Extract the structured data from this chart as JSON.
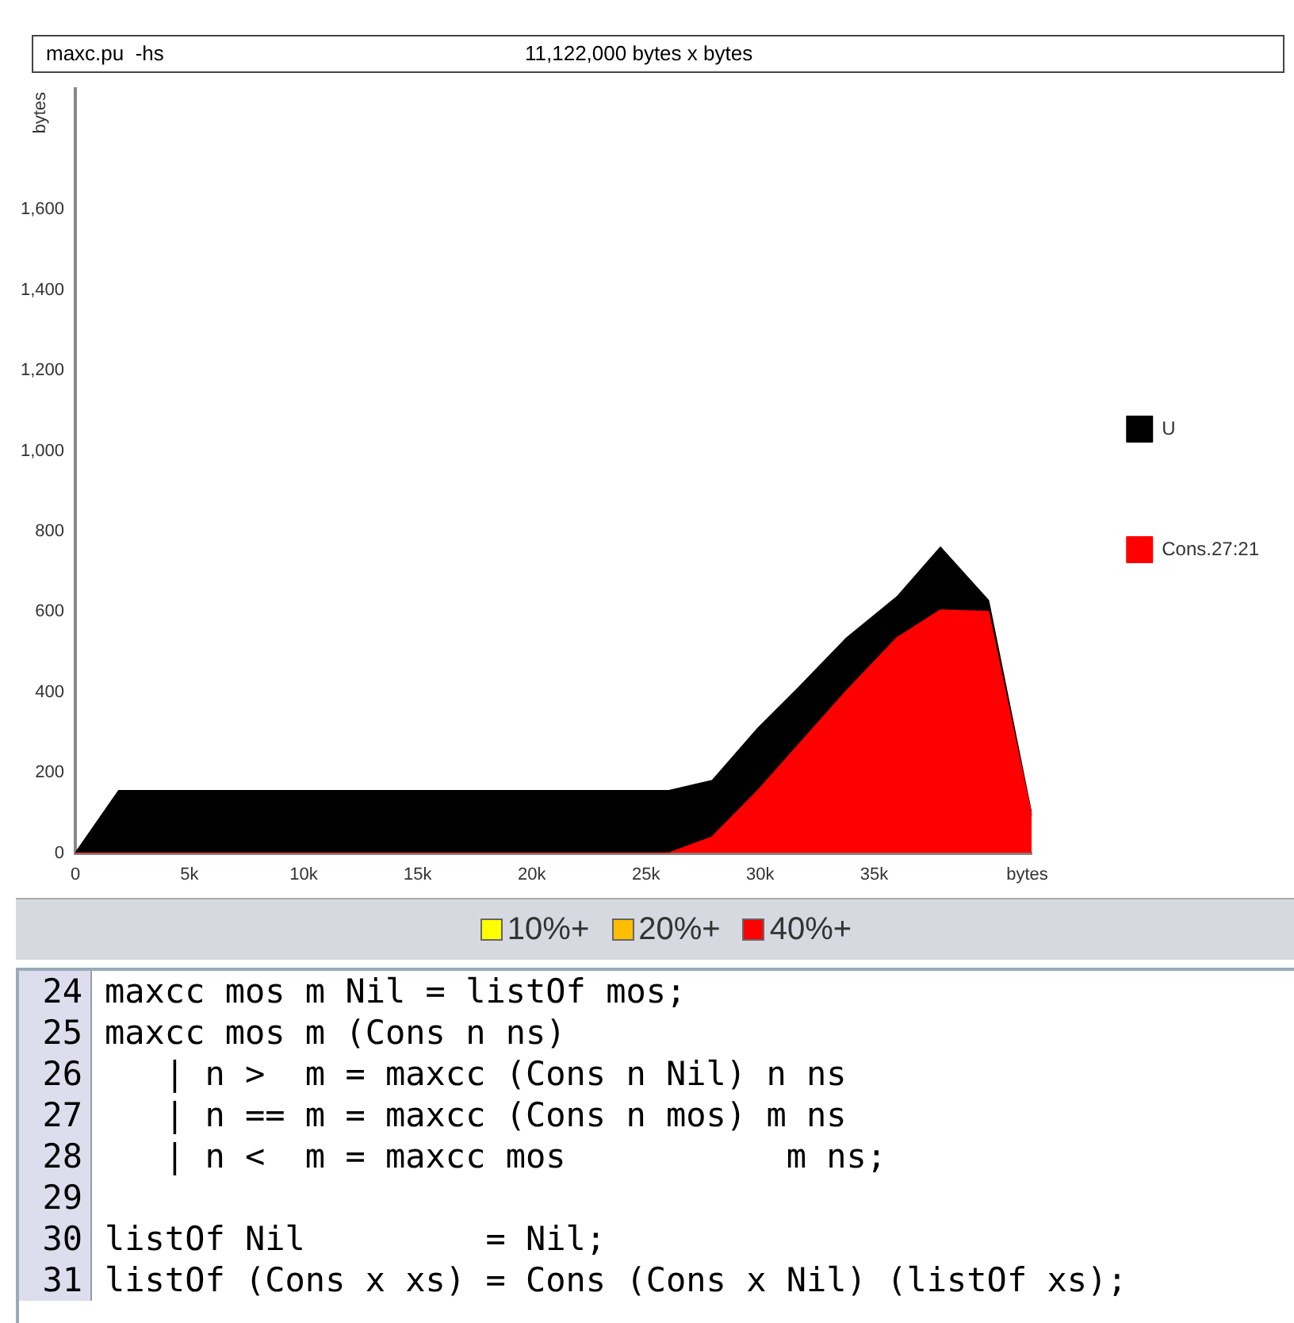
{
  "chart_data": {
    "type": "area",
    "title": "maxc.pu  -hs",
    "subtitle": "11,122,000 bytes x bytes",
    "xlabel": "bytes",
    "ylabel": "bytes",
    "stacked": true,
    "x": [
      0,
      1900,
      26000,
      27900,
      29900,
      31700,
      33800,
      36000,
      37900,
      40000,
      41900
    ],
    "series": [
      {
        "name": "Cons.27:21",
        "color": "#ff0000",
        "values": [
          0,
          0,
          0,
          40,
          155,
          270,
          404,
          535,
          604,
          600,
          90
        ]
      },
      {
        "name": "U",
        "color": "#000000",
        "values": [
          0,
          155,
          155,
          140,
          155,
          142,
          131,
          102,
          156,
          28,
          4
        ]
      }
    ],
    "xlim": [
      0,
      41900
    ],
    "xticks": [
      0,
      {
        "value": 5000,
        "label": "5k"
      },
      {
        "value": 10000,
        "label": "10k"
      },
      {
        "value": 15000,
        "label": "15k"
      },
      {
        "value": 20000,
        "label": "20k"
      },
      {
        "value": 25000,
        "label": "25k"
      },
      {
        "value": 30000,
        "label": "30k"
      },
      {
        "value": 35000,
        "label": "35k"
      }
    ],
    "ylim": [
      0,
      1900
    ],
    "yticks": [
      0,
      200,
      400,
      600,
      800,
      {
        "value": 1000,
        "label": "1,000"
      },
      {
        "value": 1200,
        "label": "1,200"
      },
      {
        "value": 1400,
        "label": "1,400"
      },
      {
        "value": 1600,
        "label": "1,600"
      }
    ],
    "grid": false,
    "legend": "right",
    "annotations": [
      "10%+",
      "20%+",
      "40%+",
      "24 maxcc mos m Nil = listOf mos;",
      "25 maxcc mos m (Cons n ns)",
      "26    | n >  m = maxcc (Cons n Nil) n ns",
      "27    | n == m = maxcc (Cons n mos) m ns",
      "28    | n <  m = maxcc mos           m ns;",
      "29 ",
      "30 listOf Nil         = Nil;",
      "31 listOf (Cons x xs) = Cons (Cons x Nil) (listOf xs);"
    ]
  }
}
